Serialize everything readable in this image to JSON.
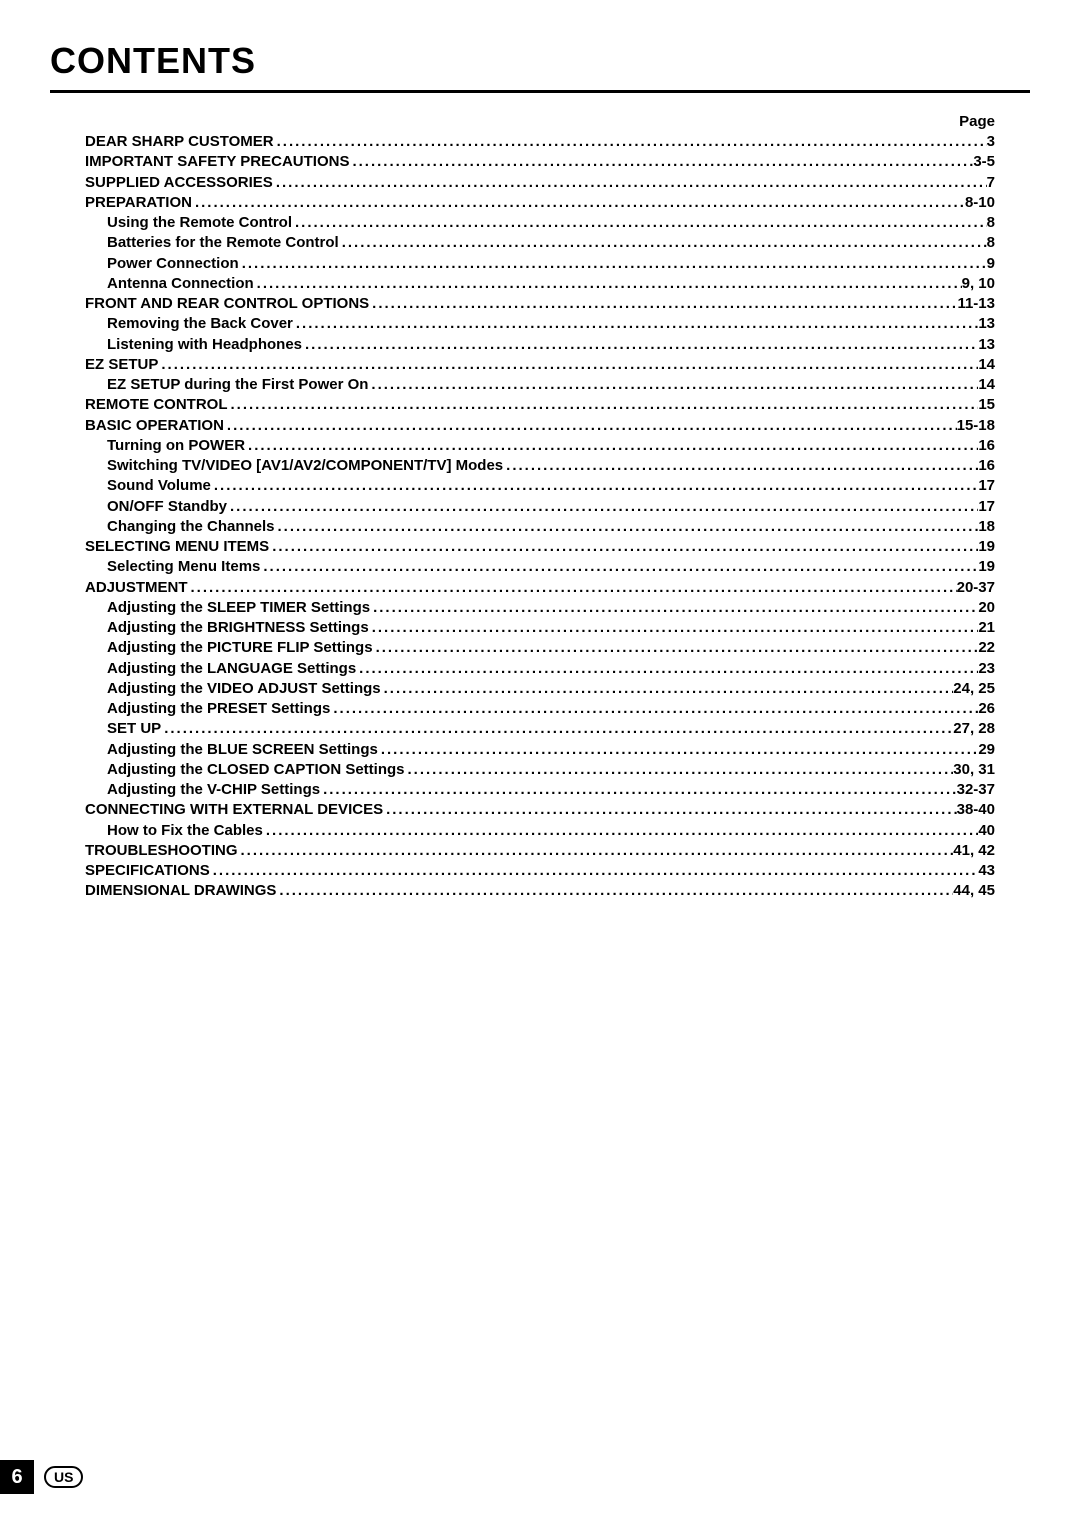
{
  "title": "CONTENTS",
  "page_header": "Page",
  "footer": {
    "page_number": "6",
    "region": "US"
  },
  "typography": {
    "title_fontsize": 36,
    "entry_fontsize": 15,
    "font_family": "Arial",
    "text_color": "#000000",
    "background_color": "#ffffff"
  },
  "toc": [
    {
      "label": "DEAR SHARP CUSTOMER",
      "page": "3",
      "level": 0
    },
    {
      "label": "IMPORTANT SAFETY PRECAUTIONS",
      "page": "3-5",
      "level": 0
    },
    {
      "label": "SUPPLIED ACCESSORIES",
      "page": "7",
      "level": 0
    },
    {
      "label": "PREPARATION",
      "page": "8-10",
      "level": 0
    },
    {
      "label": "Using the Remote Control",
      "page": "8",
      "level": 1
    },
    {
      "label": "Batteries for the Remote Control",
      "page": "8",
      "level": 1
    },
    {
      "label": "Power Connection",
      "page": "9",
      "level": 1
    },
    {
      "label": "Antenna Connection",
      "page": "9, 10",
      "level": 1
    },
    {
      "label": "FRONT AND REAR CONTROL OPTIONS",
      "page": "11-13",
      "level": 0
    },
    {
      "label": "Removing the Back Cover",
      "page": "13",
      "level": 1
    },
    {
      "label": "Listening with Headphones",
      "page": "13",
      "level": 1
    },
    {
      "label": "EZ SETUP",
      "page": "14",
      "level": 0
    },
    {
      "label": "EZ SETUP during the First Power On",
      "page": "14",
      "level": 1
    },
    {
      "label": "REMOTE CONTROL",
      "page": "15",
      "level": 0
    },
    {
      "label": "BASIC OPERATION",
      "page": "15-18",
      "level": 0
    },
    {
      "label": "Turning on POWER",
      "page": "16",
      "level": 1
    },
    {
      "label": "Switching TV/VIDEO [AV1/AV2/COMPONENT/TV] Modes",
      "page": "16",
      "level": 1
    },
    {
      "label": "Sound Volume",
      "page": "17",
      "level": 1
    },
    {
      "label": "ON/OFF Standby",
      "page": "17",
      "level": 1
    },
    {
      "label": "Changing the Channels",
      "page": "18",
      "level": 1
    },
    {
      "label": "SELECTING MENU ITEMS",
      "page": "19",
      "level": 0
    },
    {
      "label": "Selecting Menu Items",
      "page": "19",
      "level": 1
    },
    {
      "label": "ADJUSTMENT",
      "page": "20-37",
      "level": 0
    },
    {
      "label": "Adjusting the SLEEP TIMER Settings",
      "page": "20",
      "level": 1
    },
    {
      "label": "Adjusting the BRIGHTNESS Settings",
      "page": "21",
      "level": 1
    },
    {
      "label": "Adjusting the PICTURE FLIP Settings",
      "page": "22",
      "level": 1
    },
    {
      "label": "Adjusting the LANGUAGE Settings",
      "page": "23",
      "level": 1
    },
    {
      "label": "Adjusting the VIDEO ADJUST Settings",
      "page": "24, 25",
      "level": 1
    },
    {
      "label": "Adjusting the PRESET Settings",
      "page": "26",
      "level": 1
    },
    {
      "label": "SET UP",
      "page": "27, 28",
      "level": 1
    },
    {
      "label": "Adjusting the BLUE SCREEN Settings",
      "page": "29",
      "level": 1
    },
    {
      "label": "Adjusting the CLOSED CAPTION Settings",
      "page": "30, 31",
      "level": 1
    },
    {
      "label": "Adjusting the V-CHIP Settings",
      "page": "32-37",
      "level": 1
    },
    {
      "label": "CONNECTING WITH EXTERNAL DEVICES",
      "page": "38-40",
      "level": 0
    },
    {
      "label": "How to Fix the Cables",
      "page": "40",
      "level": 1
    },
    {
      "label": "TROUBLESHOOTING",
      "page": "41, 42",
      "level": 0
    },
    {
      "label": "SPECIFICATIONS",
      "page": "43",
      "level": 0
    },
    {
      "label": "DIMENSIONAL DRAWINGS",
      "page": "44, 45",
      "level": 0
    }
  ]
}
